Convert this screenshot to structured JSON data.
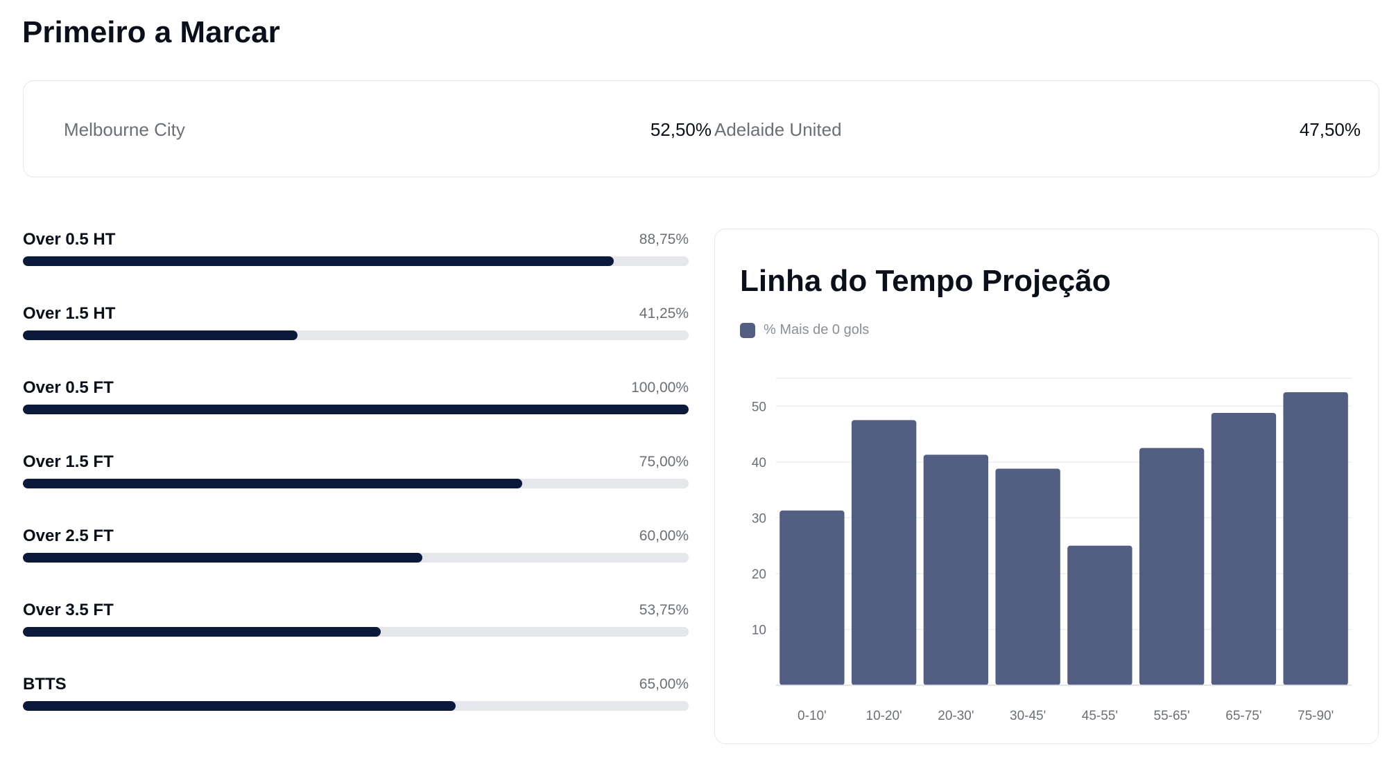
{
  "page_title": "Primeiro a Marcar",
  "first_to_score": {
    "home": {
      "name": "Melbourne City",
      "value": "52,50%"
    },
    "away": {
      "name": "Adelaide United",
      "value": "47,50%"
    }
  },
  "markets": [
    {
      "label": "Over 0.5 HT",
      "value": "88,75%",
      "pct": 88.75
    },
    {
      "label": "Over 1.5 HT",
      "value": "41,25%",
      "pct": 41.25
    },
    {
      "label": "Over 0.5 FT",
      "value": "100,00%",
      "pct": 100
    },
    {
      "label": "Over 1.5 FT",
      "value": "75,00%",
      "pct": 75
    },
    {
      "label": "Over 2.5 FT",
      "value": "60,00%",
      "pct": 60
    },
    {
      "label": "Over 3.5 FT",
      "value": "53,75%",
      "pct": 53.75
    },
    {
      "label": "BTTS",
      "value": "65,00%",
      "pct": 65
    }
  ],
  "colors": {
    "bar_fill": "#0b1a3a",
    "bar_track": "#e5e7eb",
    "chart_bar": "#525e82"
  },
  "chart_data": {
    "type": "bar",
    "title": "Linha do Tempo Projeção",
    "categories": [
      "0-10'",
      "10-20'",
      "20-30'",
      "30-45'",
      "45-55'",
      "55-65'",
      "65-75'",
      "75-90'"
    ],
    "series": [
      {
        "name": "% Mais de 0 gols",
        "values": [
          31.3,
          47.5,
          41.3,
          38.8,
          25,
          42.5,
          48.8,
          52.5
        ]
      }
    ],
    "yticks": [
      10,
      20,
      30,
      40,
      50
    ],
    "ylim": [
      0,
      55
    ],
    "xlabel": "",
    "ylabel": "",
    "grid": true,
    "legend_position": "top-left"
  }
}
